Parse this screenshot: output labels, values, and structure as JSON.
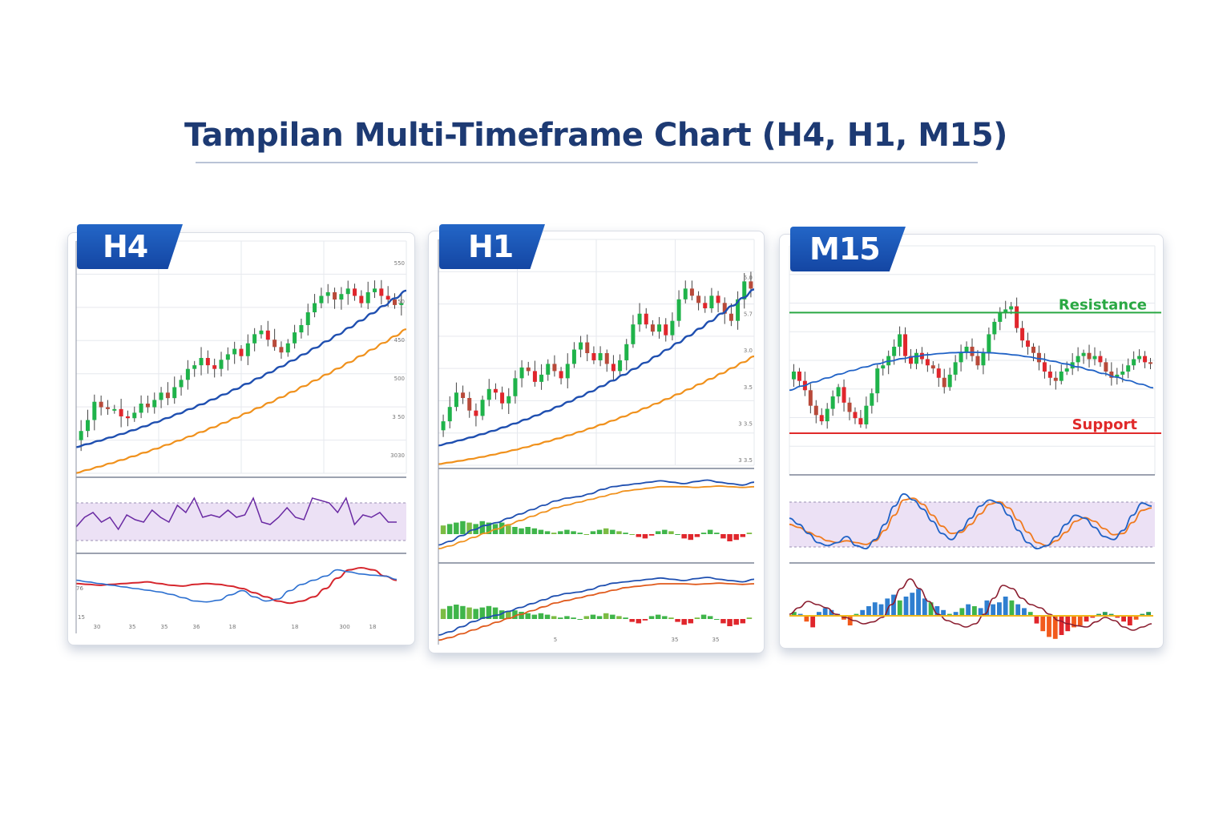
{
  "title": "Tampilan Multi-Timeframe Chart (H4, H1, M15)",
  "colors": {
    "title": "#1d3a73",
    "tag_bg": "#1a54b5",
    "bull": "#1fb34a",
    "bear": "#e0262c",
    "ma_fast": "#1f4fb0",
    "ma_slow": "#f0911c",
    "rsi_band": "#ece1f5",
    "resistance": "#2aa843",
    "support": "#e02a2a"
  },
  "chart_data": [
    {
      "type": "candlestick",
      "name": "H4",
      "price_axis_ticks": [
        "550",
        "50",
        "450",
        "500",
        "3 50",
        "3030"
      ],
      "time_axis_ticks": [
        "30",
        "35",
        "35",
        "36",
        "18",
        "18",
        "300",
        "18"
      ],
      "lower_axis_labels": [
        "76",
        "15"
      ],
      "close": [
        0.1,
        0.16,
        0.26,
        0.23,
        0.22,
        0.22,
        0.18,
        0.17,
        0.2,
        0.25,
        0.23,
        0.27,
        0.31,
        0.28,
        0.34,
        0.38,
        0.44,
        0.46,
        0.5,
        0.46,
        0.44,
        0.49,
        0.52,
        0.55,
        0.51,
        0.58,
        0.63,
        0.65,
        0.6,
        0.56,
        0.53,
        0.58,
        0.64,
        0.68,
        0.75,
        0.8,
        0.84,
        0.86,
        0.82,
        0.85,
        0.88,
        0.84,
        0.8,
        0.86,
        0.88,
        0.84,
        0.82,
        0.79,
        0.8
      ],
      "ma_fast": [
        0.02,
        0.14
      ],
      "ma_slow": [
        0.0,
        0.09
      ],
      "rsi": [
        0.35,
        0.55,
        0.65,
        0.45,
        0.55,
        0.3,
        0.6,
        0.5,
        0.45,
        0.7,
        0.55,
        0.45,
        0.8,
        0.65,
        0.95,
        0.55,
        0.6,
        0.55,
        0.7,
        0.55,
        0.6,
        0.95,
        0.45,
        0.4,
        0.55,
        0.75,
        0.55,
        0.5,
        0.95,
        0.9,
        0.85,
        0.65,
        0.95,
        0.4,
        0.6,
        0.55,
        0.65,
        0.45,
        0.45
      ],
      "osc_a": [
        0.62,
        0.6,
        0.58,
        0.6,
        0.62,
        0.64,
        0.66,
        0.62,
        0.58,
        0.56,
        0.6,
        0.62,
        0.6,
        0.56,
        0.5,
        0.4,
        0.3,
        0.2,
        0.15,
        0.2,
        0.3,
        0.5,
        0.75,
        0.95,
        1.0,
        0.95,
        0.8,
        0.7
      ],
      "osc_b": [
        0.7,
        0.66,
        0.62,
        0.58,
        0.54,
        0.5,
        0.46,
        0.42,
        0.36,
        0.28,
        0.2,
        0.18,
        0.22,
        0.35,
        0.45,
        0.3,
        0.2,
        0.25,
        0.45,
        0.6,
        0.7,
        0.8,
        0.95,
        0.9,
        0.85,
        0.82,
        0.8,
        0.72
      ]
    },
    {
      "type": "candlestick",
      "name": "H1",
      "price_axis_ticks": [
        "5.0",
        "5.7",
        "3.0",
        "3.5",
        "3 3.5",
        "3 3.5"
      ],
      "time_axis_ticks": [
        "5",
        "35",
        "35"
      ],
      "close": [
        0.12,
        0.2,
        0.28,
        0.25,
        0.18,
        0.15,
        0.24,
        0.3,
        0.28,
        0.22,
        0.26,
        0.36,
        0.42,
        0.4,
        0.34,
        0.38,
        0.44,
        0.4,
        0.36,
        0.44,
        0.52,
        0.56,
        0.5,
        0.46,
        0.5,
        0.44,
        0.4,
        0.46,
        0.55,
        0.66,
        0.72,
        0.66,
        0.62,
        0.66,
        0.6,
        0.68,
        0.8,
        0.86,
        0.82,
        0.78,
        0.75,
        0.82,
        0.78,
        0.72,
        0.68,
        0.8,
        0.9,
        0.86
      ],
      "ma_fast": [
        0.05,
        0.12
      ],
      "ma_slow": [
        0.02,
        0.07
      ],
      "macd_line": [
        0.05,
        0.1,
        0.18,
        0.26,
        0.32,
        0.36,
        0.42,
        0.48,
        0.54,
        0.6,
        0.66,
        0.7,
        0.72,
        0.76,
        0.82,
        0.86,
        0.88,
        0.9,
        0.92,
        0.94,
        0.92,
        0.9,
        0.93,
        0.95,
        0.92,
        0.9,
        0.88,
        0.92
      ],
      "signal_line": [
        0.02,
        0.06,
        0.12,
        0.18,
        0.24,
        0.3,
        0.36,
        0.42,
        0.48,
        0.54,
        0.6,
        0.64,
        0.68,
        0.72,
        0.76,
        0.8,
        0.84,
        0.86,
        0.88,
        0.9,
        0.9,
        0.9,
        0.89,
        0.9,
        0.91,
        0.9,
        0.89,
        0.9
      ],
      "hist_a": [
        0.6,
        0.7,
        0.8,
        0.9,
        0.8,
        0.7,
        0.9,
        0.8,
        0.7,
        0.8,
        0.6,
        0.5,
        0.4,
        0.5,
        0.4,
        0.3,
        0.2,
        0.1,
        0.2,
        0.3,
        0.2,
        0.1,
        0.0,
        0.2,
        0.3,
        0.4,
        0.3,
        0.2,
        0.1,
        0.0,
        -0.2,
        -0.3,
        -0.1,
        0.2,
        0.3,
        0.2,
        0.0,
        -0.3,
        -0.4,
        -0.2,
        0.1,
        0.3,
        0.1,
        -0.3,
        -0.5,
        -0.4,
        -0.2,
        0.1
      ],
      "hist_b": [
        0.7,
        0.9,
        1.0,
        0.9,
        0.8,
        0.7,
        0.8,
        0.9,
        0.8,
        0.6,
        0.5,
        0.6,
        0.5,
        0.4,
        0.3,
        0.4,
        0.3,
        0.2,
        0.1,
        0.2,
        0.1,
        0.0,
        0.2,
        0.3,
        0.2,
        0.4,
        0.3,
        0.2,
        0.1,
        -0.2,
        -0.3,
        -0.1,
        0.2,
        0.3,
        0.2,
        0.1,
        -0.2,
        -0.4,
        -0.3,
        0.1,
        0.3,
        0.2,
        0.0,
        -0.3,
        -0.5,
        -0.4,
        -0.3,
        0.1
      ]
    },
    {
      "type": "candlestick",
      "name": "M15",
      "levels": {
        "resistance_label": "Resistance",
        "support_label": "Support",
        "resistance": 0.93,
        "support": 0.0
      },
      "close": [
        0.5,
        0.44,
        0.38,
        0.28,
        0.22,
        0.18,
        0.26,
        0.34,
        0.4,
        0.3,
        0.24,
        0.2,
        0.16,
        0.28,
        0.36,
        0.52,
        0.54,
        0.6,
        0.66,
        0.74,
        0.6,
        0.55,
        0.62,
        0.58,
        0.54,
        0.52,
        0.46,
        0.4,
        0.48,
        0.56,
        0.62,
        0.66,
        0.6,
        0.54,
        0.62,
        0.74,
        0.82,
        0.88,
        0.9,
        0.92,
        0.78,
        0.7,
        0.66,
        0.62,
        0.56,
        0.5,
        0.46,
        0.44,
        0.5,
        0.52,
        0.56,
        0.6,
        0.62,
        0.58,
        0.6,
        0.56,
        0.5,
        0.46,
        0.48,
        0.5,
        0.54,
        0.58,
        0.6,
        0.56,
        0.55
      ],
      "ma_fast": [
        0.42,
        0.45
      ],
      "stoch_k": [
        0.55,
        0.45,
        0.3,
        0.15,
        0.1,
        0.15,
        0.25,
        0.1,
        0.05,
        0.2,
        0.45,
        0.75,
        0.95,
        0.85,
        0.7,
        0.5,
        0.3,
        0.2,
        0.35,
        0.55,
        0.75,
        0.85,
        0.8,
        0.6,
        0.35,
        0.15,
        0.05,
        0.1,
        0.25,
        0.45,
        0.6,
        0.55,
        0.4,
        0.25,
        0.2,
        0.35,
        0.6,
        0.8,
        0.75
      ],
      "stoch_d": [
        0.45,
        0.4,
        0.32,
        0.25,
        0.18,
        0.15,
        0.18,
        0.15,
        0.12,
        0.18,
        0.35,
        0.6,
        0.85,
        0.88,
        0.78,
        0.6,
        0.42,
        0.3,
        0.32,
        0.45,
        0.62,
        0.78,
        0.82,
        0.72,
        0.52,
        0.32,
        0.15,
        0.1,
        0.18,
        0.32,
        0.5,
        0.56,
        0.5,
        0.38,
        0.28,
        0.3,
        0.48,
        0.68,
        0.72
      ],
      "hist": [
        0.1,
        0.05,
        -0.15,
        -0.3,
        0.1,
        0.2,
        0.15,
        0.05,
        -0.1,
        -0.25,
        0.05,
        0.15,
        0.25,
        0.35,
        0.3,
        0.45,
        0.55,
        0.4,
        0.5,
        0.6,
        0.7,
        0.45,
        0.35,
        0.25,
        0.15,
        0.05,
        0.1,
        0.2,
        0.3,
        0.25,
        0.2,
        0.4,
        0.3,
        0.35,
        0.5,
        0.4,
        0.3,
        0.2,
        0.1,
        -0.2,
        -0.4,
        -0.55,
        -0.6,
        -0.5,
        -0.4,
        -0.3,
        -0.25,
        -0.15,
        -0.05,
        0.05,
        0.1,
        0.05,
        -0.05,
        -0.15,
        -0.25,
        -0.1,
        0.05,
        0.1
      ],
      "wave": [
        0.3,
        0.4,
        0.5,
        0.45,
        0.4,
        0.3,
        0.25,
        0.2,
        0.15,
        0.18,
        0.25,
        0.45,
        0.7,
        0.85,
        0.7,
        0.5,
        0.3,
        0.2,
        0.15,
        0.1,
        0.15,
        0.3,
        0.55,
        0.75,
        0.7,
        0.55,
        0.45,
        0.4,
        0.3,
        0.2,
        0.15,
        0.12,
        0.1,
        0.18,
        0.25,
        0.2,
        0.1,
        0.05,
        0.1,
        0.15
      ]
    }
  ]
}
